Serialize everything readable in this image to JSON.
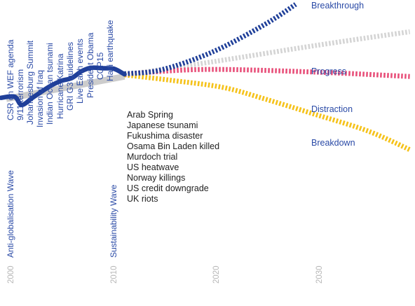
{
  "chart_data": {
    "type": "line",
    "x_ticks": [
      "2000",
      "2010",
      "2020",
      "2030"
    ],
    "historical_series": {
      "name": "",
      "color": "#1f3f99",
      "points": [
        [
          1999.6,
          0.21
        ],
        [
          2000.9,
          0.23
        ],
        [
          2001.6,
          0.08
        ],
        [
          2002.7,
          0.22
        ],
        [
          2004.3,
          0.42
        ],
        [
          2005.4,
          0.52
        ],
        [
          2006.4,
          0.57
        ],
        [
          2007.4,
          0.7
        ],
        [
          2008.3,
          0.76
        ],
        [
          2009.5,
          0.75
        ],
        [
          2010.5,
          0.74
        ],
        [
          2011.5,
          0.64
        ]
      ]
    },
    "baseline_trend": {
      "color": "#cccccc",
      "points": [
        [
          2000.1,
          0.19
        ],
        [
          2011.5,
          0.6
        ]
      ]
    },
    "scenarios": [
      {
        "name": "Breakthrough",
        "color": "#1f3f99",
        "points": [
          [
            2011.5,
            0.65
          ],
          [
            2015,
            0.72
          ],
          [
            2020,
            1.05
          ],
          [
            2025,
            1.55
          ],
          [
            2028,
            1.92
          ]
        ]
      },
      {
        "name": "Progress",
        "color": "#d4d4d4",
        "points": [
          [
            2011.5,
            0.63
          ],
          [
            2020,
            0.87
          ],
          [
            2030,
            1.17
          ],
          [
            2039,
            1.42
          ]
        ]
      },
      {
        "name": "Distraction",
        "color": "#e8507a",
        "points": [
          [
            2011.5,
            0.63
          ],
          [
            2014,
            0.68
          ],
          [
            2020,
            0.73
          ],
          [
            2030,
            0.68
          ],
          [
            2039,
            0.6
          ]
        ]
      },
      {
        "name": "Breakdown",
        "color": "#f5c21a",
        "points": [
          [
            2011.5,
            0.63
          ],
          [
            2016,
            0.53
          ],
          [
            2021,
            0.4
          ],
          [
            2025,
            0.19
          ],
          [
            2030,
            -0.1
          ],
          [
            2035,
            -0.4
          ],
          [
            2039,
            -0.74
          ]
        ]
      }
    ],
    "xlim": [
      1999.5,
      2039.5
    ],
    "ylim": [
      -3.6,
      2.0
    ]
  },
  "events_2000s": [
    "CSR on WEF agenda",
    "9/11 terrorism",
    "Johannesburg Summit",
    "Invasion of Iraq",
    "Indian Ocean tsunami",
    "Hurricane Katrina",
    "GRI G3 guidelines",
    "Live Earth events",
    "President Obama",
    "COP15",
    "Haiti earthquake"
  ],
  "events_2011": [
    "Arab Spring",
    "Japanese tsunami",
    "Fukushima disaster",
    "Osama Bin Laden killed",
    "Murdoch trial",
    "US heatwave",
    "Norway killings",
    "US credit downgrade",
    "UK riots"
  ],
  "wave_labels": [
    "Anti-globalisation Wave",
    "Sustainability Wave"
  ],
  "scenario_labels": [
    "Breakthrough",
    "Progress",
    "Distraction",
    "Breakdown"
  ]
}
